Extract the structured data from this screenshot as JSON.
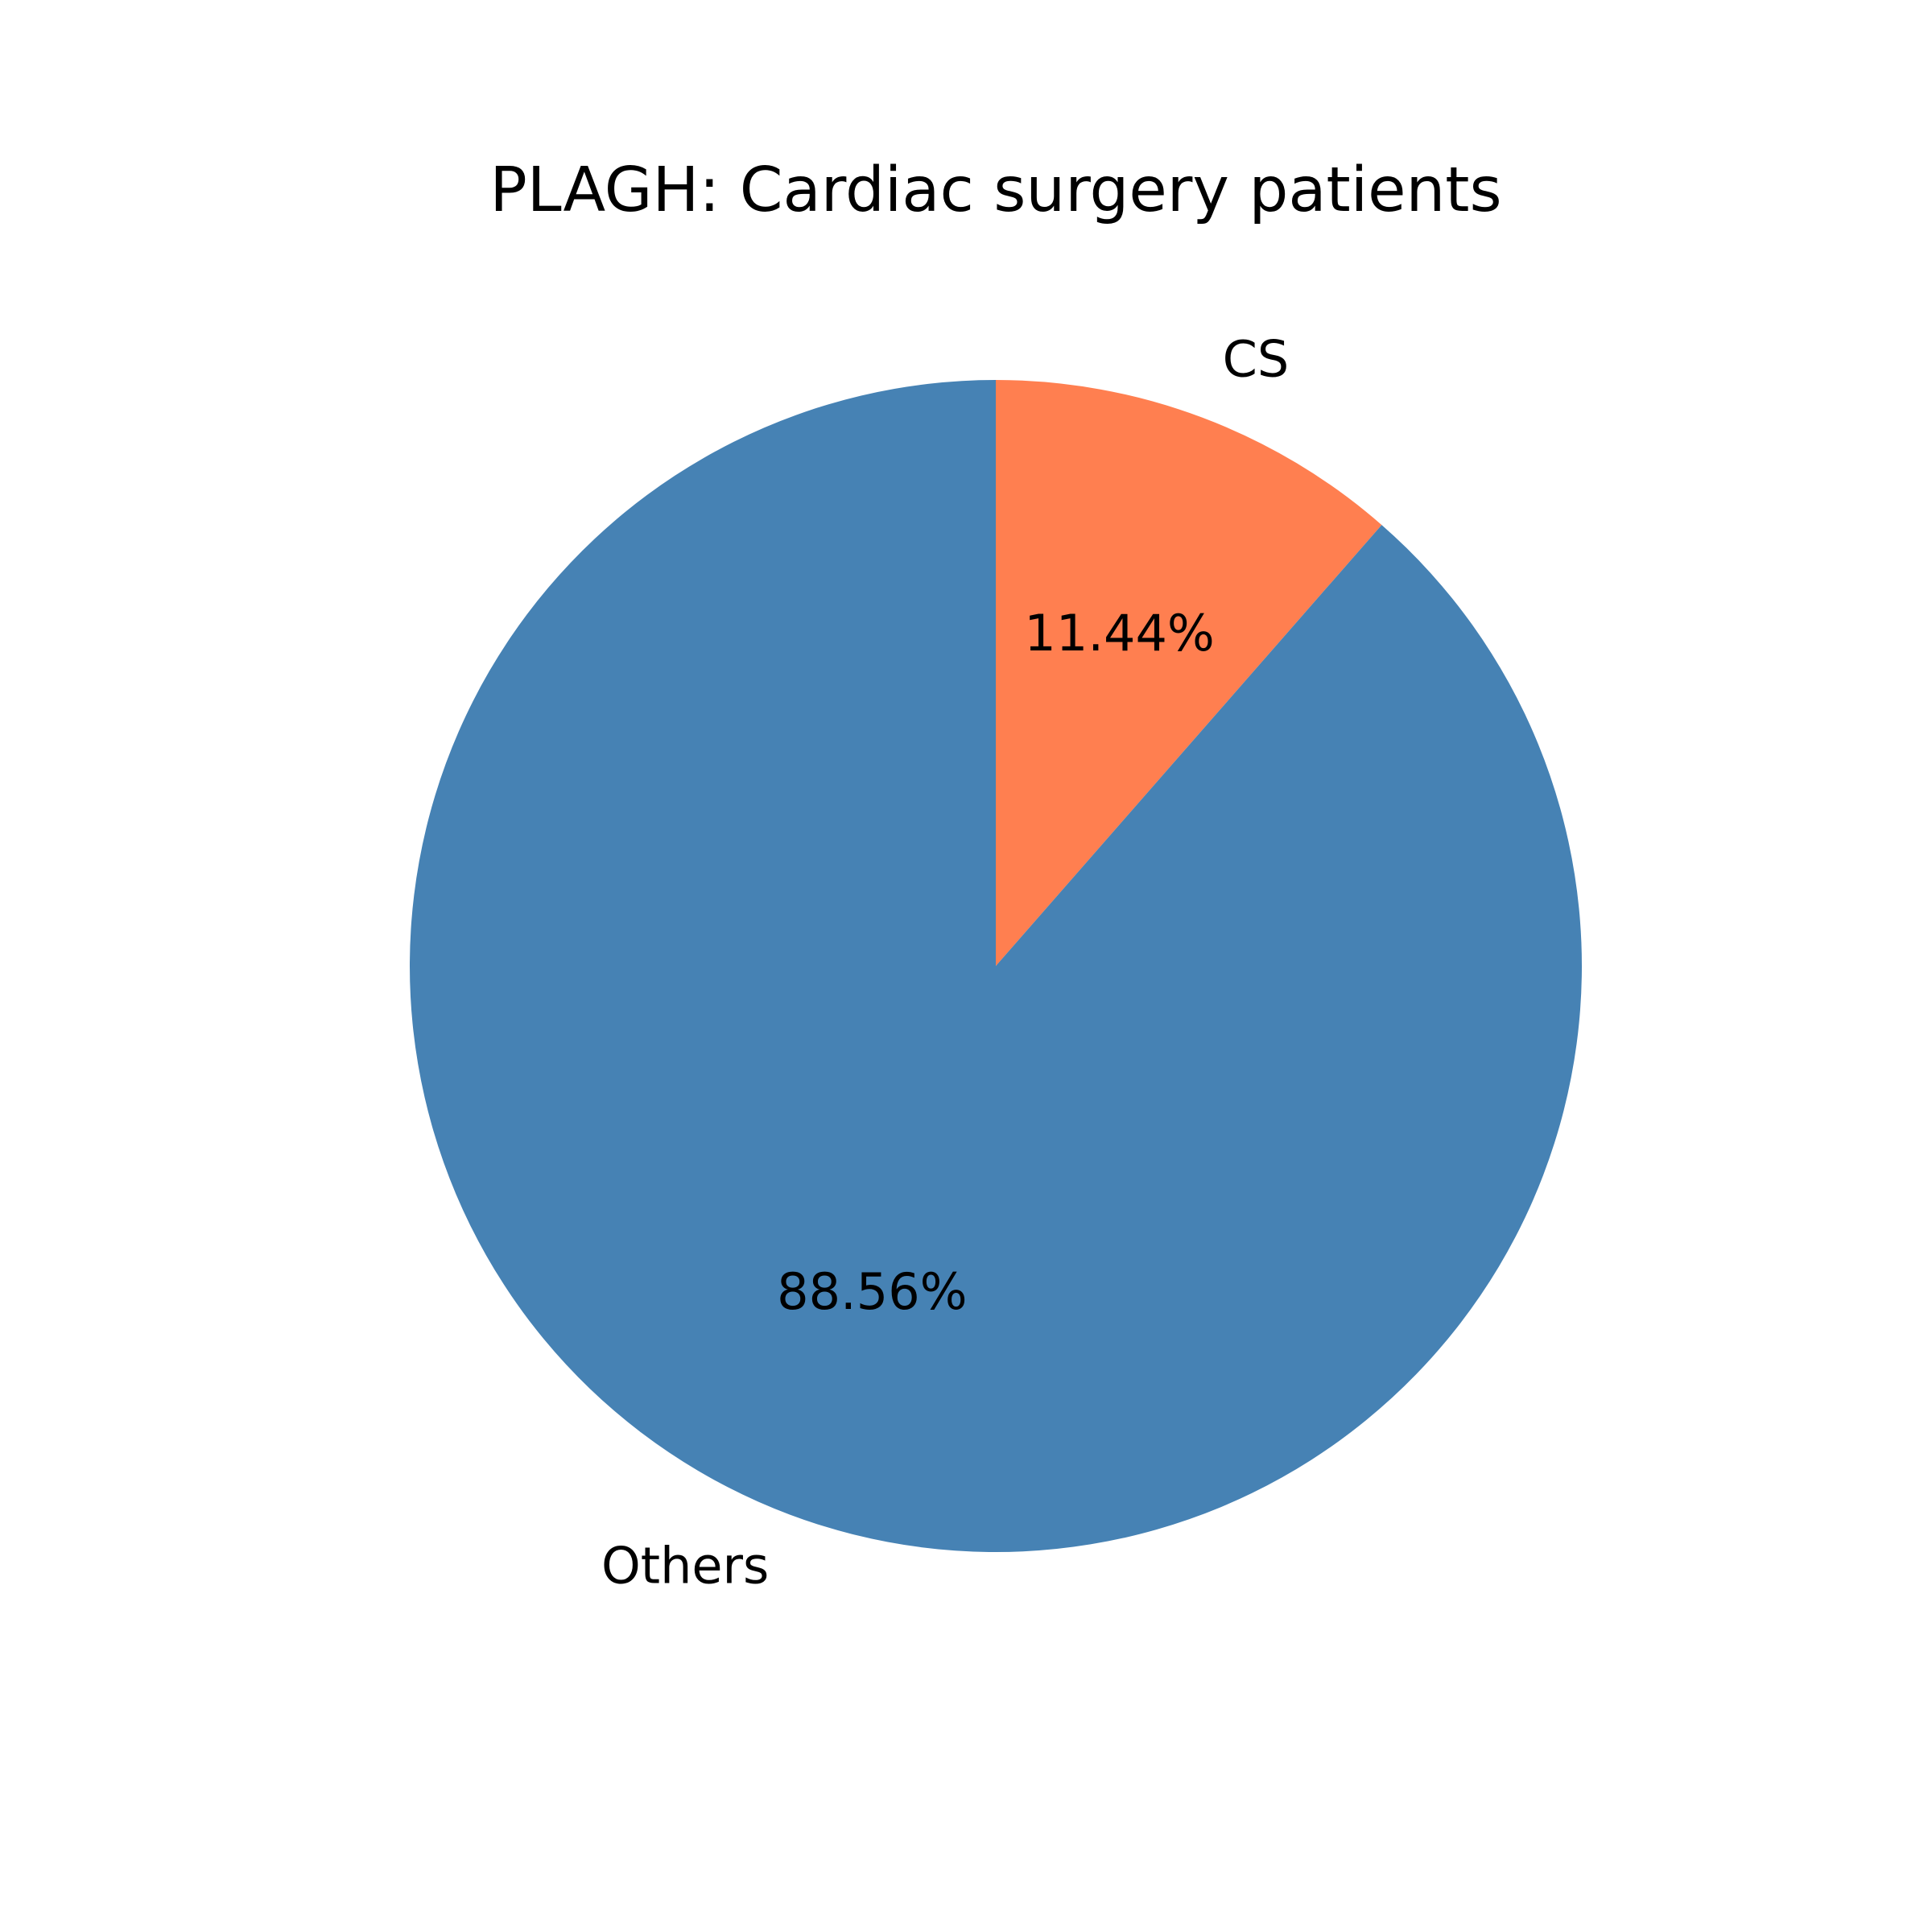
{
  "chart_data": {
    "type": "pie",
    "title": "PLAGH: Cardiac surgery patients",
    "slices": [
      {
        "label": "CS",
        "value": 11.44,
        "pct_label": "11.44%",
        "color": "#ff7f50"
      },
      {
        "label": "Others",
        "value": 88.56,
        "pct_label": "88.56%",
        "color": "#4682b4"
      }
    ],
    "start_angle_deg": 90,
    "direction": "clockwise",
    "legend": "none"
  }
}
